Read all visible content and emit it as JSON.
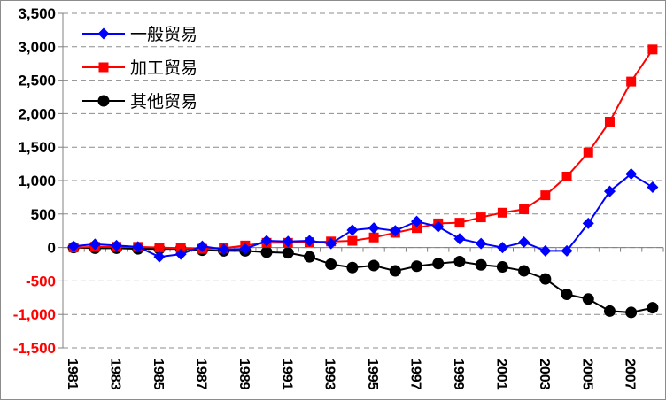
{
  "chart_data": {
    "type": "line",
    "title": "",
    "xlabel": "",
    "ylabel": "",
    "x": [
      1981,
      1982,
      1983,
      1984,
      1985,
      1986,
      1987,
      1988,
      1989,
      1990,
      1991,
      1992,
      1993,
      1994,
      1995,
      1996,
      1997,
      1998,
      1999,
      2000,
      2001,
      2002,
      2003,
      2004,
      2005,
      2006,
      2007,
      2008
    ],
    "x_tick_labels": [
      "1981",
      "1983",
      "1985",
      "1987",
      "1989",
      "1991",
      "1993",
      "1995",
      "1997",
      "1999",
      "2001",
      "2003",
      "2005",
      "2007"
    ],
    "ylim": [
      -1500,
      3500
    ],
    "y_ticks": [
      -1500,
      -1000,
      -500,
      0,
      500,
      1000,
      1500,
      2000,
      2500,
      3000,
      3500
    ],
    "y_tick_labels": [
      "-1,500",
      "-1,000",
      "-500",
      "0",
      "500",
      "1,000",
      "1,500",
      "2,000",
      "2,500",
      "3,000",
      "3,500"
    ],
    "negative_tick_color": "#ff0000",
    "grid": true,
    "legend_position": "top-left",
    "series": [
      {
        "name": "一般贸易",
        "color": "#0000ff",
        "marker": "diamond",
        "values": [
          20,
          50,
          30,
          10,
          -140,
          -100,
          20,
          -30,
          -20,
          100,
          90,
          100,
          60,
          260,
          290,
          250,
          390,
          310,
          130,
          60,
          0,
          80,
          -50,
          -50,
          360,
          840,
          1100,
          900
        ]
      },
      {
        "name": "加工贸易",
        "color": "#ff0000",
        "marker": "square",
        "values": [
          0,
          10,
          10,
          10,
          0,
          -10,
          -20,
          -10,
          30,
          70,
          70,
          80,
          90,
          100,
          150,
          220,
          290,
          360,
          370,
          450,
          520,
          570,
          780,
          1060,
          1420,
          1880,
          2480,
          2960
        ]
      },
      {
        "name": "其他贸易",
        "color": "#000000",
        "marker": "circle",
        "values": [
          0,
          -10,
          -10,
          -20,
          -20,
          -20,
          -40,
          -50,
          -50,
          -70,
          -80,
          -140,
          -250,
          -300,
          -270,
          -350,
          -280,
          -240,
          -210,
          -260,
          -290,
          -350,
          -470,
          -700,
          -770,
          -950,
          -970,
          -900
        ]
      }
    ]
  }
}
